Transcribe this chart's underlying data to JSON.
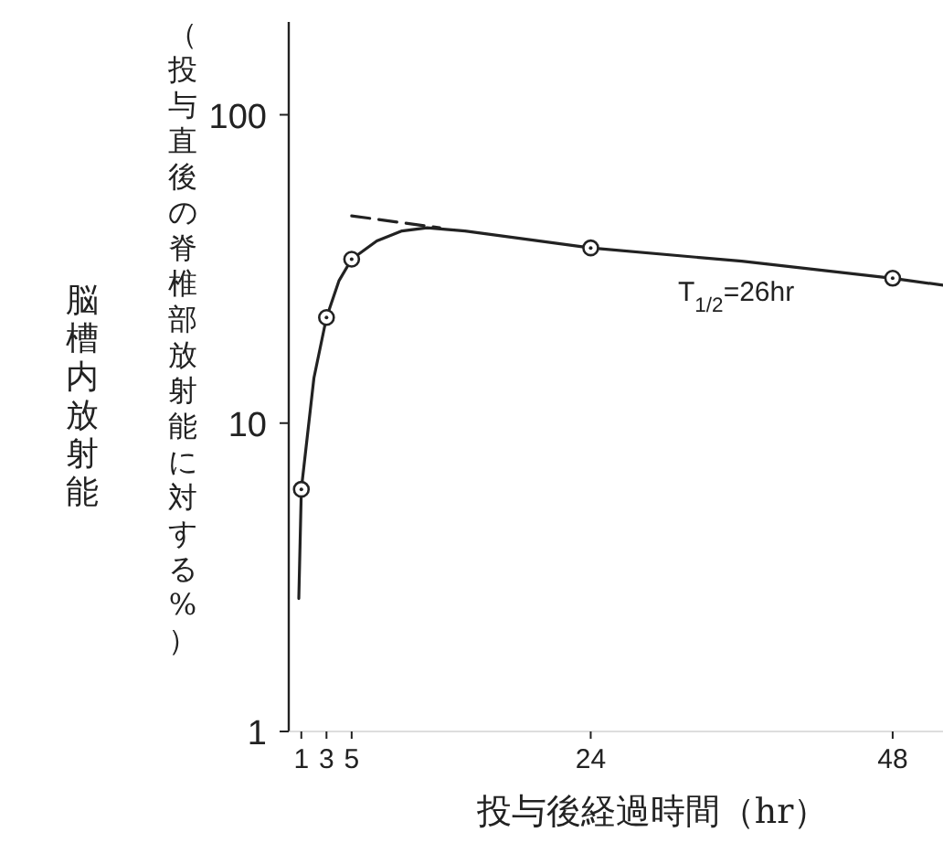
{
  "chart_data": {
    "type": "line",
    "xlabel": "投与後経過時間（hr）",
    "ylabel": "脳槽内放射能",
    "annotations": [
      "（投与直後の脊椎部放射能に対する%）",
      "T$_{1/2}$=26hr"
    ],
    "log": "y",
    "xlim": [
      0,
      52
    ],
    "xticks": [
      1,
      3,
      5,
      24,
      48
    ],
    "ylim": [
      1,
      200
    ],
    "yticks": [
      1,
      10,
      100
    ],
    "grid": false,
    "series": [
      {
        "color": "#222222",
        "line_style": "solid",
        "marker": "none",
        "x": [
          0.8,
          1,
          2,
          3,
          4,
          5,
          7,
          9,
          11,
          14,
          24,
          36,
          48,
          52
        ],
        "values": [
          2.7,
          6.1,
          14,
          22,
          29,
          34,
          39,
          42,
          43,
          42,
          37,
          33.5,
          29.5,
          28
        ]
      },
      {
        "type": "line",
        "color": "#222222",
        "line_style": "dashed",
        "marker": "none",
        "x": [
          5,
          12
        ],
        "values": [
          47,
          43
        ]
      },
      {
        "type": "scatter",
        "color": "#222222",
        "marker": "circle",
        "x": [
          1,
          3,
          5,
          24,
          48
        ],
        "values": [
          6.1,
          22,
          34,
          37,
          29.5
        ]
      }
    ]
  }
}
